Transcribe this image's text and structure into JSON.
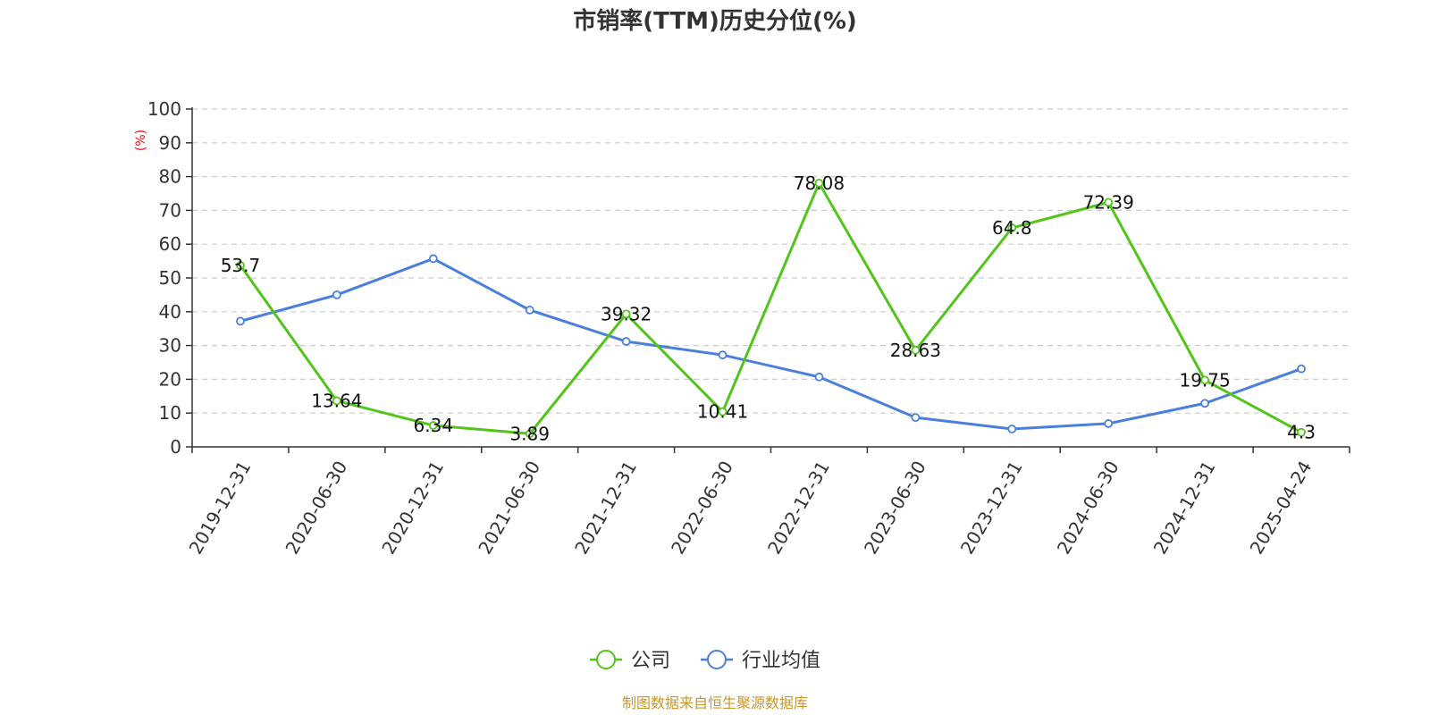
{
  "chart_data": {
    "type": "line",
    "title": "市销率(TTM)历史分位(%)",
    "ylabel": "(%)",
    "xlabel": "",
    "ylim": [
      0,
      100
    ],
    "yticks": [
      0,
      10,
      20,
      30,
      40,
      50,
      60,
      70,
      80,
      90,
      100
    ],
    "categories": [
      "2019-12-31",
      "2020-06-30",
      "2020-12-31",
      "2021-06-30",
      "2021-12-31",
      "2022-06-30",
      "2022-12-31",
      "2023-06-30",
      "2023-12-31",
      "2024-06-30",
      "2024-12-31",
      "2025-04-24"
    ],
    "series": [
      {
        "name": "公司",
        "color": "#52c41a",
        "values": [
          53.7,
          13.64,
          6.34,
          3.89,
          39.32,
          10.41,
          78.08,
          28.63,
          64.8,
          72.39,
          19.75,
          4.3
        ],
        "labels": [
          "53.7",
          "13.64",
          "6.34",
          "3.89",
          "39.32",
          "10.41",
          "78.08",
          "28.63",
          "64.8",
          "72.39",
          "19.75",
          "4.3"
        ]
      },
      {
        "name": "行业均值",
        "color": "#4a7fdc",
        "values": [
          37.2,
          45.0,
          55.7,
          40.5,
          31.2,
          27.2,
          20.7,
          8.7,
          5.3,
          6.9,
          12.9,
          23.1
        ]
      }
    ],
    "grid": true,
    "legend_position": "bottom-center"
  },
  "source_text": "制图数据来自恒生聚源数据库"
}
